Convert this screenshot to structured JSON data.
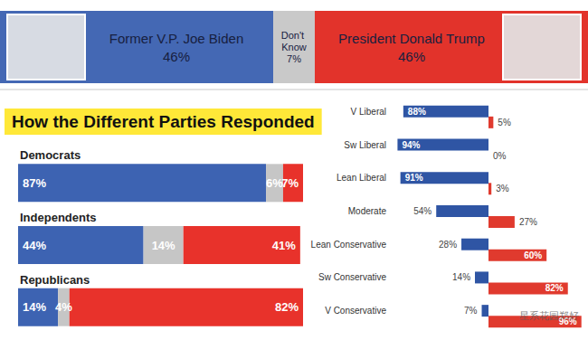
{
  "chart_data": [
    {
      "type": "bar",
      "orientation": "horizontal",
      "stacked": true,
      "data_labels": true,
      "tick_labels": false,
      "categories": [
        null
      ],
      "xlim": [
        0,
        99
      ],
      "series": [
        {
          "name": "Former V.P. Joe Biden",
          "color": "#4468b4",
          "values": [
            46
          ],
          "value_labels": [
            "46%"
          ]
        },
        {
          "name": "Don't Know",
          "color": "#c9c9c9",
          "values": [
            7
          ],
          "value_labels": [
            "7%"
          ]
        },
        {
          "name": "President Donald Trump",
          "color": "#e2332b",
          "values": [
            46
          ],
          "value_labels": [
            "46%"
          ]
        }
      ]
    },
    {
      "type": "bar",
      "title": "How the Different Parties Responded",
      "orientation": "horizontal",
      "stacked": true,
      "data_labels": true,
      "tick_labels": "y",
      "categories": [
        "Democrats",
        "Independents",
        "Republicans"
      ],
      "xlim": [
        0,
        100
      ],
      "series": [
        {
          "color": "#3d63b2",
          "values": [
            87,
            44,
            14
          ],
          "value_labels": [
            "87%",
            "44%",
            "14%"
          ]
        },
        {
          "color": "#c6c6c6",
          "values": [
            6,
            14,
            4
          ],
          "value_labels": [
            "6%",
            "14%",
            "4%"
          ]
        },
        {
          "color": "#e8322b",
          "values": [
            7,
            41,
            82
          ],
          "value_labels": [
            "7%",
            "41%",
            "82%"
          ]
        }
      ]
    },
    {
      "type": "bar",
      "orientation": "horizontal",
      "stacked": false,
      "data_labels": true,
      "tick_labels": "y",
      "categories": [
        "V Liberal",
        "Sw Liberal",
        "Lean Liberal",
        "Moderate",
        "Lean Conservative",
        "Sw Conservative",
        "V Conservative"
      ],
      "xlim": [
        0,
        100
      ],
      "series": [
        {
          "color": "#2f55a4",
          "values": [
            88,
            94,
            91,
            54,
            28,
            14,
            7
          ],
          "value_labels": [
            "88%",
            "94%",
            "91%",
            "54%",
            "28%",
            "14%",
            "7%"
          ]
        },
        {
          "color": "#e03a2e",
          "values": [
            5,
            0,
            3,
            27,
            60,
            82,
            96
          ],
          "value_labels": [
            "5%",
            "0%",
            "3%",
            "27%",
            "60%",
            "82%",
            "96%"
          ]
        }
      ]
    }
  ],
  "watermark": "星系花园郑好"
}
